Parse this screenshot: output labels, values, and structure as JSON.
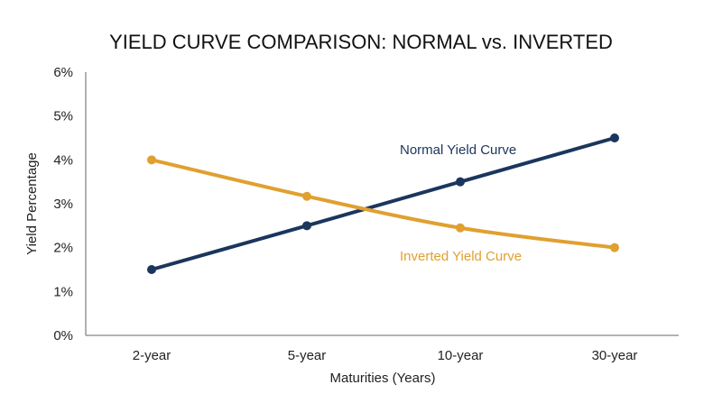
{
  "chart_data": {
    "type": "line",
    "title": "YIELD CURVE COMPARISON: NORMAL vs. INVERTED",
    "xlabel": "Maturities (Years)",
    "ylabel": "Yield Percentage",
    "categories": [
      "2-year",
      "5-year",
      "10-year",
      "30-year"
    ],
    "ylim": [
      0,
      6
    ],
    "yticks": [
      "0%",
      "1%",
      "2%",
      "3%",
      "4%",
      "5%",
      "6%"
    ],
    "grid": false,
    "series": [
      {
        "name": "Normal Yield Curve",
        "values": [
          1.5,
          2.5,
          3.5,
          4.5
        ],
        "color": "#1b365d",
        "smooth": false
      },
      {
        "name": "Inverted Yield Curve",
        "values": [
          4.0,
          3.17,
          2.45,
          2.0
        ],
        "color": "#e0a030",
        "smooth": true
      }
    ]
  }
}
